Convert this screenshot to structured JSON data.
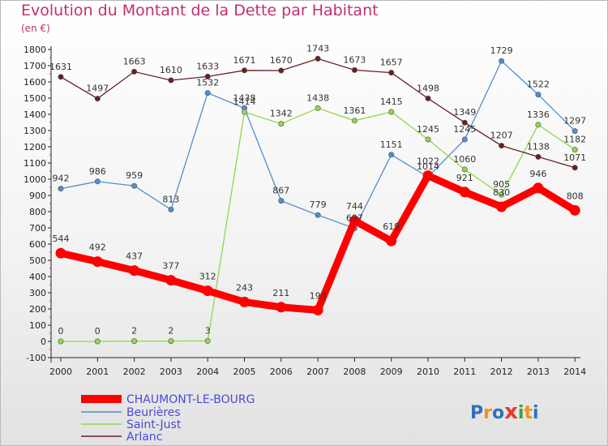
{
  "title": "Evolution du Montant de la Dette par Habitant",
  "subtitle": "(en €)",
  "logo_text": "Proxiti",
  "chart_data": {
    "type": "line",
    "title": "Evolution du Montant de la Dette par Habitant",
    "ylabel": "(en €)",
    "x": [
      "2000",
      "2001",
      "2002",
      "2003",
      "2004",
      "2005",
      "2006",
      "2007",
      "2008",
      "2009",
      "2010",
      "2011",
      "2012",
      "2013",
      "2014"
    ],
    "ylim": [
      -100,
      1800
    ],
    "yticks": [
      -100,
      0,
      100,
      200,
      300,
      400,
      500,
      600,
      700,
      800,
      900,
      1000,
      1100,
      1200,
      1300,
      1400,
      1500,
      1600,
      1700,
      1800
    ],
    "grid": false,
    "legend": "bottom-left",
    "series": [
      {
        "name": "CHAUMONT-LE-BOURG",
        "color": "#ff0000",
        "values": [
          544,
          492,
          437,
          377,
          312,
          243,
          211,
          193,
          744,
          619,
          1022,
          921,
          830,
          946,
          808
        ]
      },
      {
        "name": "Beurières",
        "color": "#4f8fd0",
        "values": [
          942,
          986,
          959,
          813,
          1532,
          1438,
          867,
          779,
          697,
          1151,
          1014,
          1245,
          1729,
          1522,
          1297
        ]
      },
      {
        "name": "Saint-Just",
        "color": "#8ed84e",
        "values": [
          0,
          0,
          2,
          2,
          3,
          1414,
          1342,
          1438,
          1361,
          1415,
          1245,
          1060,
          905,
          1336,
          1182
        ]
      },
      {
        "name": "Arlanc",
        "color": "#6b1f22",
        "values": [
          1631,
          1497,
          1663,
          1610,
          1633,
          1671,
          1670,
          1743,
          1673,
          1657,
          1498,
          1349,
          1207,
          1138,
          1071
        ]
      }
    ],
    "labels": [
      [
        "544",
        "492",
        "437",
        "377",
        "312",
        "243",
        "211",
        "193",
        "744",
        "619",
        "1022",
        "921",
        "830",
        "946",
        "808"
      ],
      [
        "942",
        "986",
        "959",
        "813",
        "1532",
        "1438",
        "867",
        "779",
        "697",
        "1151",
        "1014",
        "1245",
        "1729",
        "1522",
        "1297"
      ],
      [
        "0",
        "0",
        "2",
        "2",
        "3",
        "1414",
        "1342",
        "1438",
        "1361",
        "1415",
        "1245",
        "1060",
        "905",
        "1336",
        "1182"
      ],
      [
        "1631",
        "1497",
        "1663",
        "1610",
        "1633",
        "1671",
        "1670",
        "1743",
        "1673",
        "1657",
        "1498",
        "1349",
        "1207",
        "1138",
        "1071"
      ]
    ]
  }
}
